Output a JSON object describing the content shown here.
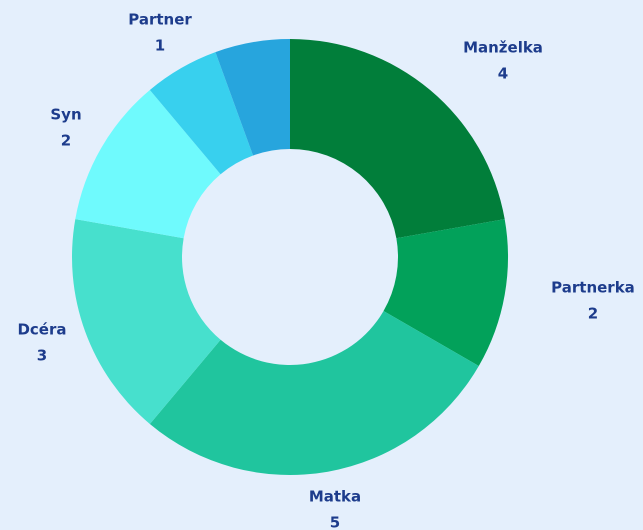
{
  "chart_data": {
    "type": "donut",
    "categories": [
      "Manželka",
      "Partnerka",
      "Matka",
      "Dcéra",
      "Syn",
      "Partner",
      null
    ],
    "values": [
      4,
      2,
      5,
      3,
      2,
      1,
      1
    ],
    "colors": [
      "#017e3a",
      "#02a15a",
      "#20c59e",
      "#47e0cd",
      "#6ffafd",
      "#38d0ee",
      "#27a5dd"
    ]
  }
}
